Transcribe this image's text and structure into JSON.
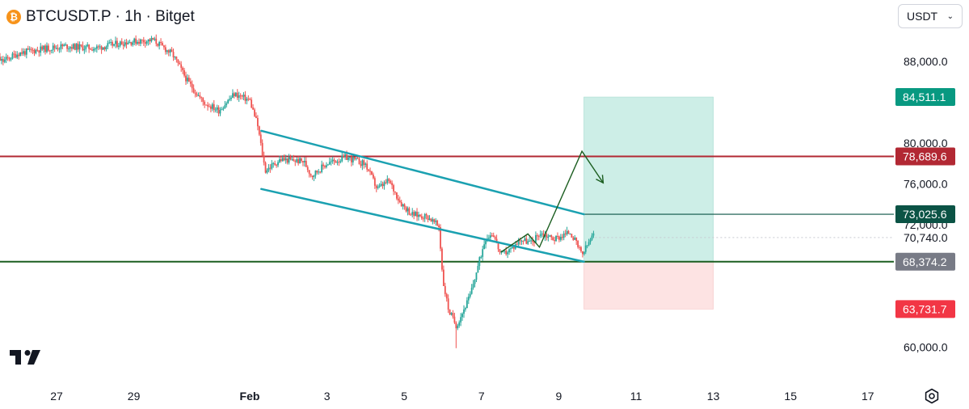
{
  "header": {
    "symbol": "BTCUSDT.P",
    "interval": "1h",
    "exchange": "Bitget",
    "separator": "·"
  },
  "currency_selector": {
    "label": "USDT"
  },
  "colors": {
    "up": "#26a69a",
    "down": "#ef5350",
    "channel": "#1ba1b1",
    "resistance": "#b22833",
    "support": "#1b5e20",
    "path": "#1b5e20",
    "target_zone": "#cdeee7",
    "stop_zone": "#fde3e3",
    "label_target": "#089981",
    "label_resistance": "#b22833",
    "label_entry_line": "#0b5345",
    "label_current": "#787b86",
    "label_stop": "#f23645"
  },
  "chart_data": {
    "type": "candlestick",
    "title": "BTCUSDT.P · 1h · Bitget",
    "y_axis": {
      "min": 58000,
      "max": 92000,
      "ticks": [
        88000,
        80000,
        76000,
        72000,
        60000
      ],
      "tick_labels": [
        "88,000.0",
        "80,000.0",
        "76,000.0",
        "72,000.0",
        "60,000.0"
      ]
    },
    "x_axis": {
      "ticks": [
        {
          "label": "27",
          "day": 27
        },
        {
          "label": "29",
          "day": 29
        },
        {
          "label": "Feb",
          "day": 32,
          "bold": true
        },
        {
          "label": "3",
          "day": 34
        },
        {
          "label": "5",
          "day": 36
        },
        {
          "label": "7",
          "day": 38
        },
        {
          "label": "9",
          "day": 40
        },
        {
          "label": "11",
          "day": 42
        },
        {
          "label": "13",
          "day": 44
        },
        {
          "label": "15",
          "day": 46
        },
        {
          "label": "17",
          "day": 48
        }
      ]
    },
    "price_path": [
      [
        25.05,
        89200
      ],
      [
        25.6,
        88000
      ],
      [
        26.0,
        88800
      ],
      [
        26.6,
        89200
      ],
      [
        27.2,
        89500
      ],
      [
        28.0,
        89300
      ],
      [
        28.8,
        89900
      ],
      [
        29.5,
        90100
      ],
      [
        30.0,
        88700
      ],
      [
        30.4,
        86000
      ],
      [
        30.8,
        84000
      ],
      [
        31.2,
        83200
      ],
      [
        31.6,
        84800
      ],
      [
        32.0,
        84200
      ],
      [
        32.2,
        81800
      ],
      [
        32.4,
        77300
      ],
      [
        32.8,
        78400
      ],
      [
        33.4,
        78200
      ],
      [
        33.6,
        76800
      ],
      [
        34.0,
        78000
      ],
      [
        34.5,
        78600
      ],
      [
        35.0,
        77900
      ],
      [
        35.3,
        75500
      ],
      [
        35.6,
        76300
      ],
      [
        35.9,
        74200
      ],
      [
        36.2,
        73000
      ],
      [
        36.6,
        72800
      ],
      [
        36.9,
        71800
      ],
      [
        37.0,
        66500
      ],
      [
        37.15,
        63600
      ],
      [
        37.35,
        62100
      ],
      [
        37.7,
        65000
      ],
      [
        37.9,
        67800
      ],
      [
        38.1,
        70700
      ],
      [
        38.3,
        71200
      ],
      [
        38.5,
        69000
      ],
      [
        38.8,
        69700
      ],
      [
        39.0,
        70600
      ],
      [
        39.3,
        70200
      ],
      [
        39.5,
        71200
      ],
      [
        39.9,
        70600
      ],
      [
        40.3,
        71300
      ],
      [
        40.5,
        69800
      ],
      [
        40.6,
        69000
      ],
      [
        40.8,
        70400
      ],
      [
        40.9,
        71000
      ]
    ],
    "last_price": 70740.0,
    "last_price_label": "70,740.0",
    "low_wick": {
      "day": 37.35,
      "price": 59900
    },
    "levels": [
      {
        "name": "resistance",
        "price": 78689.6,
        "label": "78,689.6"
      },
      {
        "name": "support",
        "price": 68374.2,
        "label": "68,374.2"
      }
    ],
    "channel": {
      "upper": [
        [
          32.3,
          81200
        ],
        [
          40.65,
          73025.6
        ]
      ],
      "lower": [
        [
          32.3,
          75500
        ],
        [
          40.65,
          68374.2
        ]
      ]
    },
    "position": {
      "start_day": 40.65,
      "end_day": 44.0,
      "target": 84511.1,
      "target_label": "84,511.1",
      "entry": 68374.2,
      "stop": 63731.7,
      "stop_label": "63,731.7"
    },
    "entry_line": {
      "price": 73025.6,
      "label": "73,025.6",
      "start_day": 40.65
    },
    "projection": [
      [
        38.5,
        69300
      ],
      [
        39.2,
        71100
      ],
      [
        39.5,
        69800
      ],
      [
        40.6,
        79200
      ],
      [
        41.15,
        76100
      ]
    ]
  }
}
